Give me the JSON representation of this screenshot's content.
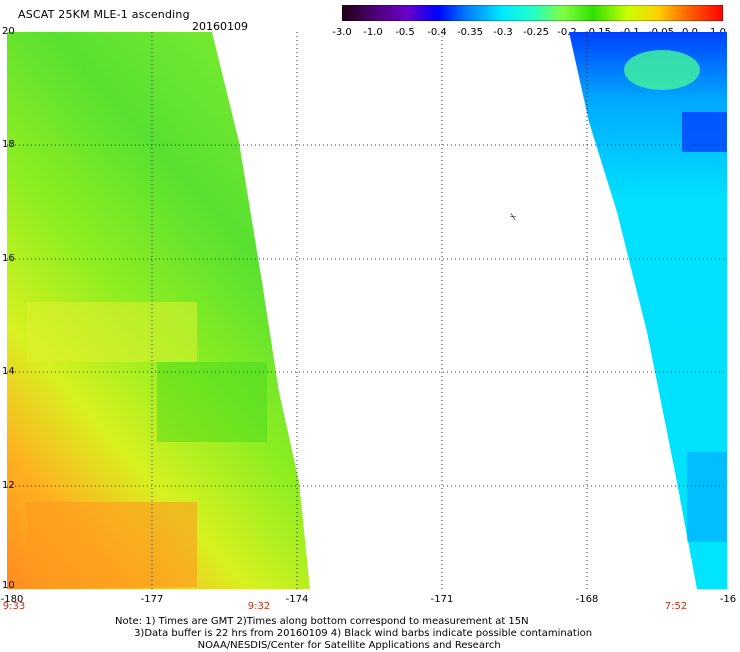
{
  "header": {
    "title": "ASCAT 25KM MLE-1 ascending",
    "date": "20160109"
  },
  "colorbar": {
    "ticks": [
      "-3.0",
      "-1.0",
      "-0.5",
      "-0.4",
      "-0.35",
      "-0.3",
      "-0.25",
      "-0.2",
      "-0.15",
      "-0.1",
      "-0.05",
      "0.0",
      "1.0"
    ],
    "colors": [
      "#200010",
      "#4a0070",
      "#6a00c8",
      "#0000ff",
      "#0080ff",
      "#00e8ff",
      "#20ffc8",
      "#80ff40",
      "#30e000",
      "#c8ff00",
      "#ffd000",
      "#ff6000",
      "#ff0000"
    ]
  },
  "axes": {
    "y_labels": [
      "20",
      "18",
      "16",
      "14",
      "12",
      "10"
    ],
    "x_labels": [
      "-180",
      "-177",
      "-174",
      "-171",
      "-168",
      "-16"
    ],
    "times": [
      "9:33",
      "9:32",
      "7:52"
    ]
  },
  "notes": [
    "Note: 1) Times are GMT 2)Times along bottom correspond to measurement at 15N",
    "      3)Data buffer is 22 hrs from 20160109 4) Black wind barbs indicate possible contamination",
    "                          NOAA/NESDIS/Center for Satellite Applications and Research"
  ],
  "marker_text": "⍀"
}
